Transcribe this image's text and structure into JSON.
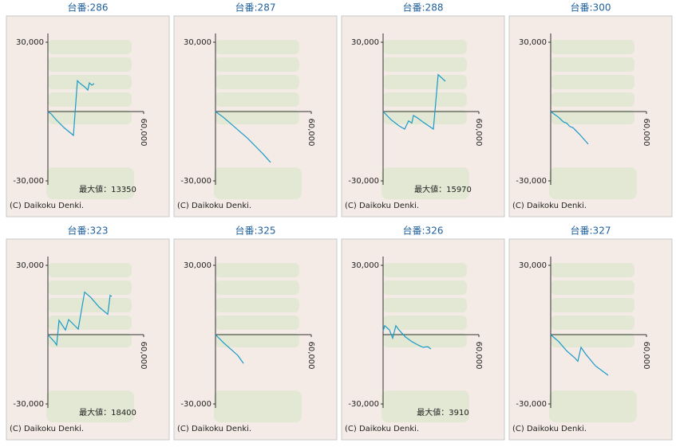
{
  "copyright": "(C) Daikoku Denki.",
  "chart_data": [
    {
      "type": "line",
      "title": "台番:286",
      "annotation": "最大値：13350",
      "x": [
        0,
        2000,
        5000,
        10000,
        16000,
        18500,
        20000,
        23000,
        25000,
        26000,
        27500,
        29000
      ],
      "series": [
        {
          "color": "#1a9ac9",
          "values": [
            0,
            -1000,
            -3400,
            -6900,
            -10300,
            13350,
            12300,
            10700,
            9300,
            12400,
            11400,
            12100
          ]
        }
      ],
      "xlim": [
        0,
        60000
      ],
      "xticks": [
        {
          "value": 60000,
          "label": "60,000"
        }
      ],
      "ylim": [
        -30000,
        30000
      ],
      "yticks": [
        {
          "value": 30000,
          "label": "30,000"
        },
        {
          "value": -30000,
          "label": "-30,000"
        }
      ]
    },
    {
      "type": "line",
      "title": "台番:287",
      "x": [
        0,
        5000,
        10000,
        15000,
        20000,
        25000,
        30000,
        34500
      ],
      "series": [
        {
          "color": "#1a9ac9",
          "values": [
            0,
            -2500,
            -5500,
            -8500,
            -11500,
            -15000,
            -18500,
            -22000
          ]
        }
      ],
      "xlim": [
        0,
        60000
      ],
      "xticks": [
        {
          "value": 60000,
          "label": "60,000"
        }
      ],
      "ylim": [
        -30000,
        30000
      ],
      "yticks": [
        {
          "value": 30000,
          "label": "30,000"
        },
        {
          "value": -30000,
          "label": "-30,000"
        }
      ]
    },
    {
      "type": "line",
      "title": "台番:288",
      "annotation": "最大値：15970",
      "x": [
        0,
        5000,
        10000,
        13500,
        16000,
        18000,
        19000,
        21000,
        25000,
        31500,
        34500,
        39000
      ],
      "series": [
        {
          "color": "#1a9ac9",
          "values": [
            0,
            -3500,
            -6200,
            -7600,
            -4000,
            -5000,
            -1700,
            -2500,
            -4500,
            -7600,
            15970,
            13100
          ]
        }
      ],
      "xlim": [
        0,
        60000
      ],
      "xticks": [
        {
          "value": 60000,
          "label": "60,000"
        }
      ],
      "ylim": [
        -30000,
        30000
      ],
      "yticks": [
        {
          "value": 30000,
          "label": "30,000"
        },
        {
          "value": -30000,
          "label": "-30,000"
        }
      ]
    },
    {
      "type": "line",
      "title": "台番:300",
      "x": [
        0,
        5000,
        8000,
        10000,
        12000,
        14000,
        18000,
        23500
      ],
      "series": [
        {
          "color": "#1a9ac9",
          "values": [
            0,
            -2500,
            -4500,
            -5000,
            -6500,
            -7000,
            -9800,
            -14100
          ]
        }
      ],
      "xlim": [
        0,
        60000
      ],
      "xticks": [
        {
          "value": 60000,
          "label": "60,000"
        }
      ],
      "ylim": [
        -30000,
        30000
      ],
      "yticks": [
        {
          "value": 30000,
          "label": "30,000"
        },
        {
          "value": -30000,
          "label": "-30,000"
        }
      ]
    },
    {
      "type": "line",
      "title": "台番:323",
      "annotation": "最大値：18400",
      "x": [
        0,
        4000,
        5500,
        7000,
        11000,
        13000,
        19000,
        23000,
        27000,
        32000,
        37500,
        39000,
        40000
      ],
      "series": [
        {
          "color": "#1a9ac9",
          "values": [
            0,
            -3000,
            -4500,
            6200,
            2000,
            6500,
            2400,
            18400,
            16000,
            12000,
            8800,
            17000,
            16500
          ]
        }
      ],
      "xlim": [
        0,
        60000
      ],
      "xticks": [
        {
          "value": 60000,
          "label": "60,000"
        }
      ],
      "ylim": [
        -30000,
        30000
      ],
      "yticks": [
        {
          "value": 30000,
          "label": "30,000"
        },
        {
          "value": -30000,
          "label": "-30,000"
        }
      ]
    },
    {
      "type": "line",
      "title": "台番:325",
      "x": [
        0,
        5000,
        10000,
        14000,
        17500
      ],
      "series": [
        {
          "color": "#1a9ac9",
          "values": [
            0,
            -3500,
            -6500,
            -9000,
            -12400
          ]
        }
      ],
      "xlim": [
        0,
        60000
      ],
      "xticks": [
        {
          "value": 60000,
          "label": "60,000"
        }
      ],
      "ylim": [
        -30000,
        30000
      ],
      "yticks": [
        {
          "value": 30000,
          "label": "30,000"
        },
        {
          "value": -30000,
          "label": "-30,000"
        }
      ]
    },
    {
      "type": "line",
      "title": "台番:326",
      "annotation": "最大値：3910",
      "x": [
        0,
        1000,
        4000,
        6000,
        8000,
        10000,
        14000,
        18000,
        22000,
        25000,
        28000,
        30000
      ],
      "series": [
        {
          "color": "#1a9ac9",
          "values": [
            1500,
            3910,
            2000,
            -1500,
            3900,
            2000,
            -1000,
            -3000,
            -4500,
            -5500,
            -5200,
            -6200
          ]
        }
      ],
      "xlim": [
        0,
        60000
      ],
      "xticks": [
        {
          "value": 60000,
          "label": "60,000"
        }
      ],
      "ylim": [
        -30000,
        30000
      ],
      "yticks": [
        {
          "value": 30000,
          "label": "30,000"
        },
        {
          "value": -30000,
          "label": "-30,000"
        }
      ]
    },
    {
      "type": "line",
      "title": "台番:327",
      "x": [
        0,
        5000,
        10000,
        15000,
        17000,
        19000,
        22000,
        28000,
        36000
      ],
      "series": [
        {
          "color": "#1a9ac9",
          "values": [
            0,
            -3000,
            -7000,
            -10000,
            -11500,
            -5500,
            -8500,
            -13500,
            -17600
          ]
        }
      ],
      "xlim": [
        0,
        60000
      ],
      "xticks": [
        {
          "value": 60000,
          "label": "60,000"
        }
      ],
      "ylim": [
        -30000,
        30000
      ],
      "yticks": [
        {
          "value": 30000,
          "label": "30,000"
        },
        {
          "value": -30000,
          "label": "-30,000"
        }
      ]
    }
  ]
}
